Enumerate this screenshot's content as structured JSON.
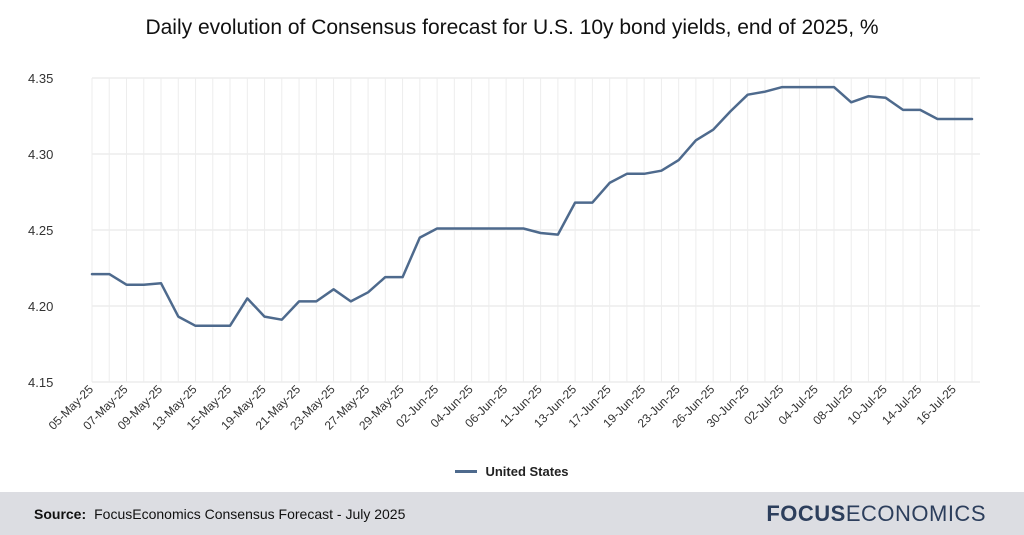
{
  "chart_data": {
    "type": "line",
    "title": "Daily evolution of Consensus forecast for U.S. 10y bond yields, end of 2025, %",
    "xlabel": "",
    "ylabel": "",
    "ylim": [
      4.15,
      4.35
    ],
    "yticks": [
      "4.15",
      "4.20",
      "4.25",
      "4.30",
      "4.35"
    ],
    "grid": true,
    "legend_position": "bottom",
    "tick_labels": [
      "05-May-25",
      "07-May-25",
      "09-May-25",
      "13-May-25",
      "15-May-25",
      "19-May-25",
      "21-May-25",
      "23-May-25",
      "27-May-25",
      "29-May-25",
      "02-Jun-25",
      "04-Jun-25",
      "06-Jun-25",
      "11-Jun-25",
      "13-Jun-25",
      "17-Jun-25",
      "19-Jun-25",
      "23-Jun-25",
      "26-Jun-25",
      "30-Jun-25",
      "02-Jul-25",
      "04-Jul-25",
      "08-Jul-25",
      "10-Jul-25",
      "14-Jul-25",
      "16-Jul-25"
    ],
    "series": [
      {
        "name": "United States",
        "color": "#4e6a8d",
        "values": [
          4.221,
          4.221,
          4.214,
          4.214,
          4.215,
          4.193,
          4.187,
          4.187,
          4.187,
          4.205,
          4.193,
          4.191,
          4.203,
          4.203,
          4.211,
          4.203,
          4.209,
          4.219,
          4.219,
          4.245,
          4.251,
          4.251,
          4.251,
          4.251,
          4.251,
          4.251,
          4.248,
          4.247,
          4.268,
          4.268,
          4.281,
          4.287,
          4.287,
          4.289,
          4.296,
          4.309,
          4.316,
          4.328,
          4.339,
          4.341,
          4.344,
          4.344,
          4.344,
          4.344,
          4.334,
          4.338,
          4.337,
          4.329,
          4.329,
          4.323,
          4.323,
          4.323
        ]
      }
    ]
  },
  "legend": {
    "label": "United States"
  },
  "footer": {
    "source_label": "Source:",
    "source_text": "FocusEconomics Consensus Forecast - July 2025",
    "logo_bold": "FOCUS",
    "logo_regular": "ECONOMICS"
  }
}
